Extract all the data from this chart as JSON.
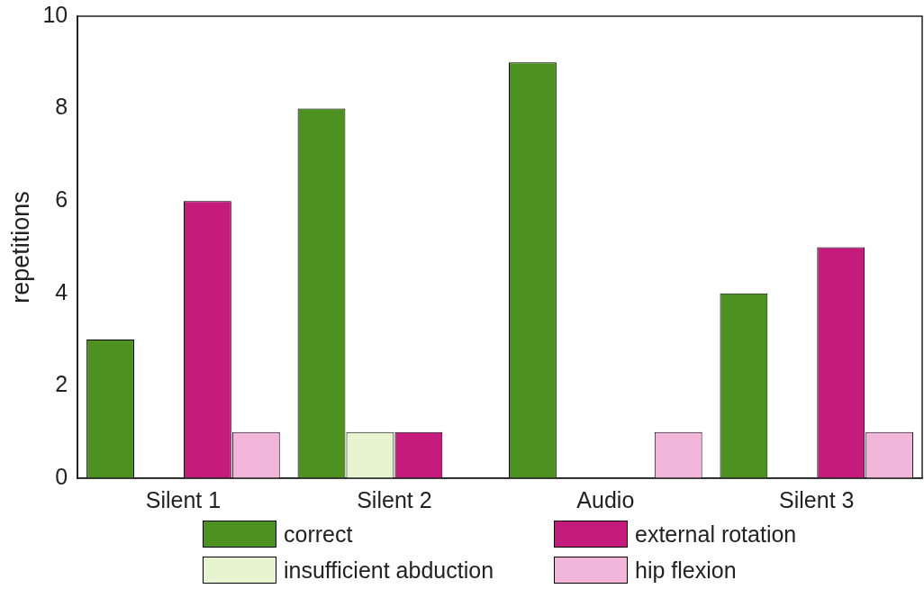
{
  "chart_data": {
    "type": "bar",
    "ylabel": "repetitions",
    "categories": [
      "Silent 1",
      "Silent 2",
      "Audio",
      "Silent 3"
    ],
    "series": [
      {
        "name": "correct",
        "color": "#4d9221",
        "values": [
          3,
          8,
          9,
          4
        ]
      },
      {
        "name": "insufficient abduction",
        "color": "#e6f5d0",
        "values": [
          0,
          1,
          0,
          0
        ]
      },
      {
        "name": "external rotation",
        "color": "#c51b7d",
        "values": [
          6,
          1,
          0,
          5
        ]
      },
      {
        "name": "hip flexion",
        "color": "#f1b6da",
        "values": [
          1,
          0,
          1,
          1
        ]
      }
    ],
    "ylim": [
      0,
      10
    ],
    "yticks": [
      0,
      2,
      4,
      6,
      8,
      10
    ],
    "grid": false,
    "legend": "bottom"
  }
}
